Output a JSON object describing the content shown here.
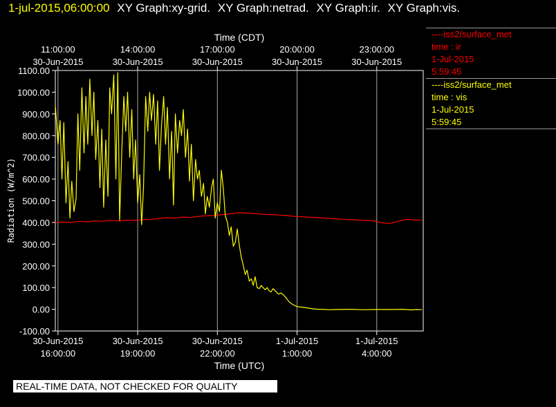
{
  "header": {
    "timestamp": "1-jul-2015,06:00:00",
    "titles": [
      "XY Graph:xy-grid.",
      "XY Graph:netrad.",
      "XY Graph:ir.",
      "XY Graph:vis."
    ]
  },
  "legend": [
    {
      "source": "----iss2/surface_met",
      "var": "time : ir",
      "date": "1-Jul-2015",
      "time": "5:59:45",
      "color": "#ff0000"
    },
    {
      "source": "----iss2/surface_met",
      "var": "time : vis",
      "date": "1-Jul-2015",
      "time": "5:59:45",
      "color": "#ffff00"
    }
  ],
  "footer": {
    "text": "REAL-TIME DATA, NOT CHECKED FOR QUALITY"
  },
  "chart_data": {
    "type": "line",
    "xlabel": "Time (UTC)",
    "x2label": "Time (CDT)",
    "ylabel": "Radiation (W/m^2)",
    "ylim": [
      -100,
      1100
    ],
    "xlim": [
      15.9,
      29.75
    ],
    "x_unit": "hours since 30-Jun-2015 00:00 UTC",
    "yticks": [
      "1100.00",
      "1000.00",
      "900.00",
      "800.00",
      "700.00",
      "600.00",
      "500.00",
      "400.00",
      "300.00",
      "200.00",
      "100.00",
      "0.00",
      "-100.00"
    ],
    "bottom_ticks": [
      {
        "x": 16,
        "date": "30-Jun-2015",
        "time": "16:00:00"
      },
      {
        "x": 19,
        "date": "30-Jun-2015",
        "time": "19:00:00"
      },
      {
        "x": 22,
        "date": "30-Jun-2015",
        "time": "22:00:00"
      },
      {
        "x": 25,
        "date": "1-Jul-2015",
        "time": "1:00:00"
      },
      {
        "x": 28,
        "date": "1-Jul-2015",
        "time": "4:00:00"
      }
    ],
    "top_ticks": [
      {
        "x": 16,
        "date": "30-Jun-2015",
        "time": "11:00:00"
      },
      {
        "x": 19,
        "date": "30-Jun-2015",
        "time": "14:00:00"
      },
      {
        "x": 22,
        "date": "30-Jun-2015",
        "time": "17:00:00"
      },
      {
        "x": 25,
        "date": "30-Jun-2015",
        "time": "20:00:00"
      },
      {
        "x": 28,
        "date": "30-Jun-2015",
        "time": "23:00:00"
      }
    ],
    "grid": "vertical lines at time ticks",
    "series": [
      {
        "label": "ir",
        "color": "#ff0000",
        "x": [
          15.9,
          16.2,
          16.5,
          16.8,
          17.1,
          17.4,
          17.7,
          18.0,
          18.3,
          18.6,
          18.9,
          19.2,
          19.5,
          19.8,
          20.1,
          20.4,
          20.7,
          21.0,
          21.3,
          21.6,
          21.9,
          22.2,
          22.5,
          22.8,
          23.1,
          23.4,
          23.7,
          24.0,
          24.3,
          24.6,
          24.9,
          25.2,
          25.5,
          25.8,
          26.1,
          26.4,
          26.7,
          27.0,
          27.3,
          27.6,
          27.9,
          28.2,
          28.5,
          28.8,
          29.1,
          29.4,
          29.7
        ],
        "y": [
          398,
          402,
          400,
          405,
          403,
          407,
          405,
          410,
          406,
          411,
          409,
          413,
          414,
          418,
          422,
          420,
          425,
          423,
          428,
          431,
          432,
          436,
          440,
          445,
          443,
          441,
          438,
          436,
          434,
          432,
          428,
          426,
          424,
          422,
          419,
          417,
          415,
          413,
          411,
          409,
          407,
          398,
          396,
          405,
          414,
          412,
          410
        ]
      },
      {
        "label": "vis",
        "color": "#ffff00",
        "x": [
          15.9,
          16.0,
          16.08,
          16.15,
          16.22,
          16.3,
          16.38,
          16.45,
          16.52,
          16.6,
          16.68,
          16.75,
          16.82,
          16.9,
          16.98,
          17.05,
          17.12,
          17.2,
          17.28,
          17.35,
          17.42,
          17.5,
          17.58,
          17.65,
          17.72,
          17.8,
          17.88,
          17.95,
          18.02,
          18.1,
          18.18,
          18.25,
          18.32,
          18.4,
          18.48,
          18.55,
          18.62,
          18.7,
          18.78,
          18.85,
          18.92,
          19.0,
          19.08,
          19.15,
          19.22,
          19.3,
          19.38,
          19.45,
          19.52,
          19.6,
          19.68,
          19.75,
          19.82,
          19.9,
          19.98,
          20.05,
          20.12,
          20.2,
          20.28,
          20.35,
          20.42,
          20.5,
          20.58,
          20.65,
          20.72,
          20.8,
          20.88,
          20.95,
          21.02,
          21.1,
          21.18,
          21.25,
          21.32,
          21.4,
          21.48,
          21.55,
          21.62,
          21.7,
          21.78,
          21.85,
          21.92,
          22.0,
          22.08,
          22.15,
          22.22,
          22.3,
          22.38,
          22.45,
          22.52,
          22.6,
          22.68,
          22.75,
          22.82,
          22.9,
          22.98,
          23.05,
          23.12,
          23.2,
          23.28,
          23.35,
          23.42,
          23.5,
          23.58,
          23.65,
          23.72,
          23.8,
          23.88,
          23.95,
          24.02,
          24.1,
          24.2,
          24.3,
          24.4,
          24.5,
          24.6,
          24.7,
          24.8,
          24.9,
          25.0,
          25.15,
          25.3,
          25.45,
          25.6,
          25.8,
          26.0,
          26.2,
          26.5,
          27.0,
          27.5,
          28.0,
          28.5,
          29.0,
          29.3,
          29.5,
          29.7
        ],
        "y": [
          940,
          760,
          870,
          600,
          860,
          490,
          680,
          420,
          590,
          450,
          510,
          900,
          640,
          1020,
          720,
          980,
          760,
          1060,
          800,
          1000,
          690,
          870,
          560,
          830,
          470,
          780,
          520,
          1020,
          900,
          1080,
          600,
          1090,
          410,
          720,
          980,
          820,
          1000,
          700,
          920,
          600,
          780,
          490,
          620,
          390,
          560,
          980,
          820,
          1000,
          870,
          990,
          760,
          960,
          640,
          850,
          980,
          760,
          930,
          600,
          820,
          480,
          900,
          720,
          870,
          800,
          920,
          700,
          830,
          590,
          760,
          500,
          690,
          600,
          640,
          520,
          580,
          440,
          520,
          470,
          560,
          600,
          420,
          490,
          450,
          640,
          560,
          430,
          400,
          340,
          380,
          290,
          310,
          370,
          300,
          240,
          200,
          160,
          180,
          130,
          140,
          110,
          150,
          100,
          95,
          110,
          100,
          90,
          100,
          85,
          80,
          95,
          82,
          70,
          75,
          65,
          50,
          35,
          25,
          18,
          12,
          10,
          8,
          5,
          2,
          0,
          0,
          -2,
          -1,
          0,
          -2,
          -1,
          -1,
          0,
          -3,
          -1,
          -2
        ]
      }
    ]
  }
}
